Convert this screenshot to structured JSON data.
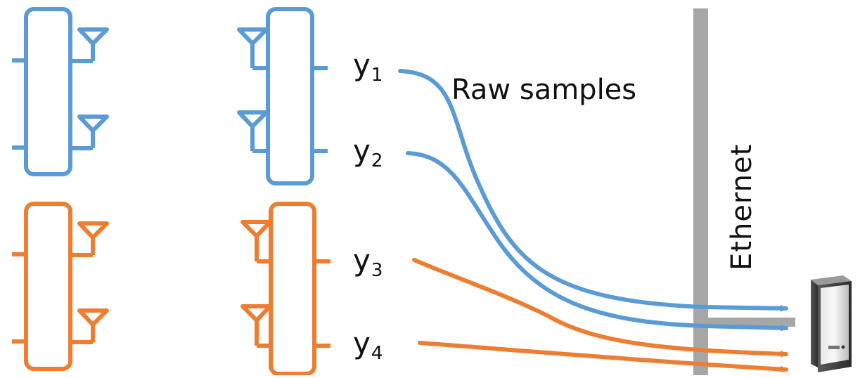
{
  "colors": {
    "blue": "#5b9bd5",
    "orange": "#ed7d31",
    "bus": "#a6a6a6",
    "text": "#111111"
  },
  "icons": [
    "antenna-icon",
    "server-icon"
  ],
  "signals": [
    {
      "base": "y",
      "sub": "1"
    },
    {
      "base": "y",
      "sub": "2"
    },
    {
      "base": "y",
      "sub": "3"
    },
    {
      "base": "y",
      "sub": "4"
    }
  ],
  "labels": {
    "raw_samples": "Raw samples",
    "ethernet": "Ethernet"
  }
}
